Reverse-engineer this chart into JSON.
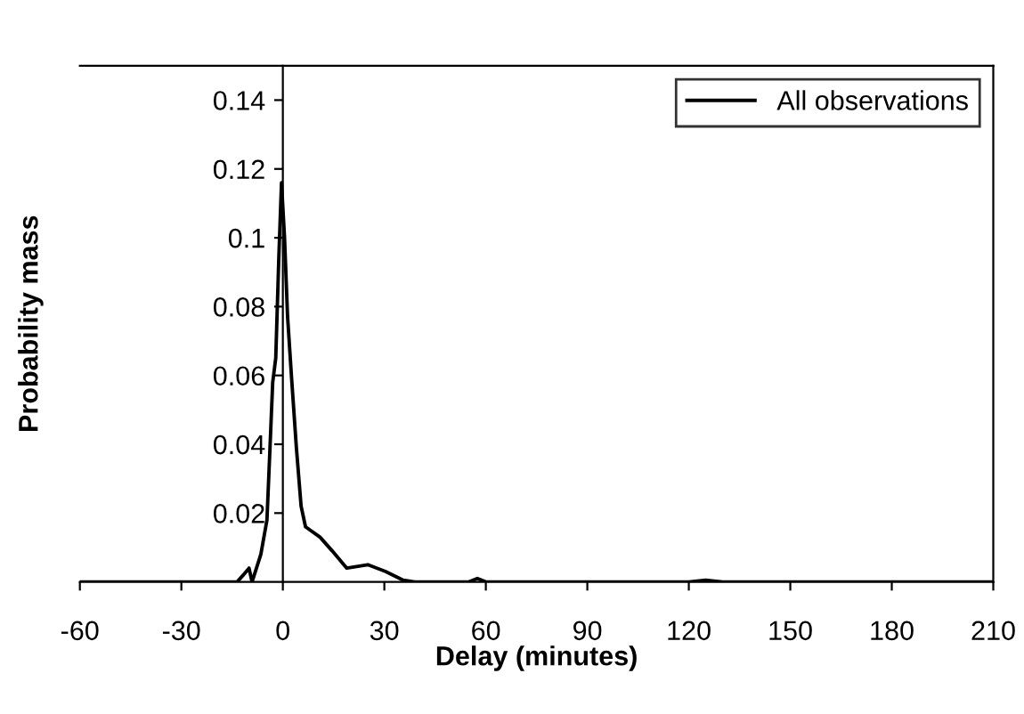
{
  "chart_data": {
    "type": "line",
    "xlabel": "Delay (minutes)",
    "ylabel": "Probability mass",
    "xlim": [
      -60,
      210
    ],
    "xticks": [
      -60,
      -30,
      0,
      30,
      60,
      90,
      120,
      150,
      180,
      210
    ],
    "ylim": [
      0,
      0.15
    ],
    "yticks": [
      0.02,
      0.04,
      0.06,
      0.08,
      0.1,
      0.12,
      0.14
    ],
    "grid": false,
    "legend": "top right",
    "marker": "none",
    "line_style": "solid",
    "series": [
      {
        "name": "All observations",
        "color": "#000000",
        "x": [
          -60,
          -13.5,
          -11.7,
          -10,
          -9.1,
          -6.5,
          -4.7,
          -3.8,
          -3,
          -2.1,
          -1.2,
          -0.4,
          0.5,
          1.4,
          2.6,
          4,
          5.4,
          6.7,
          11,
          14.6,
          18.9,
          25.1,
          30.4,
          35.6,
          39,
          55,
          57.5,
          60,
          120,
          125,
          130,
          210
        ],
        "values": [
          0,
          0,
          0.002,
          0.004,
          0,
          0.008,
          0.018,
          0.039,
          0.058,
          0.065,
          0.094,
          0.116,
          0.1,
          0.077,
          0.059,
          0.039,
          0.022,
          0.016,
          0.013,
          0.009,
          0.004,
          0.005,
          0.003,
          0.0005,
          0,
          0,
          0.001,
          0,
          0,
          0.0005,
          0,
          0
        ]
      }
    ]
  }
}
